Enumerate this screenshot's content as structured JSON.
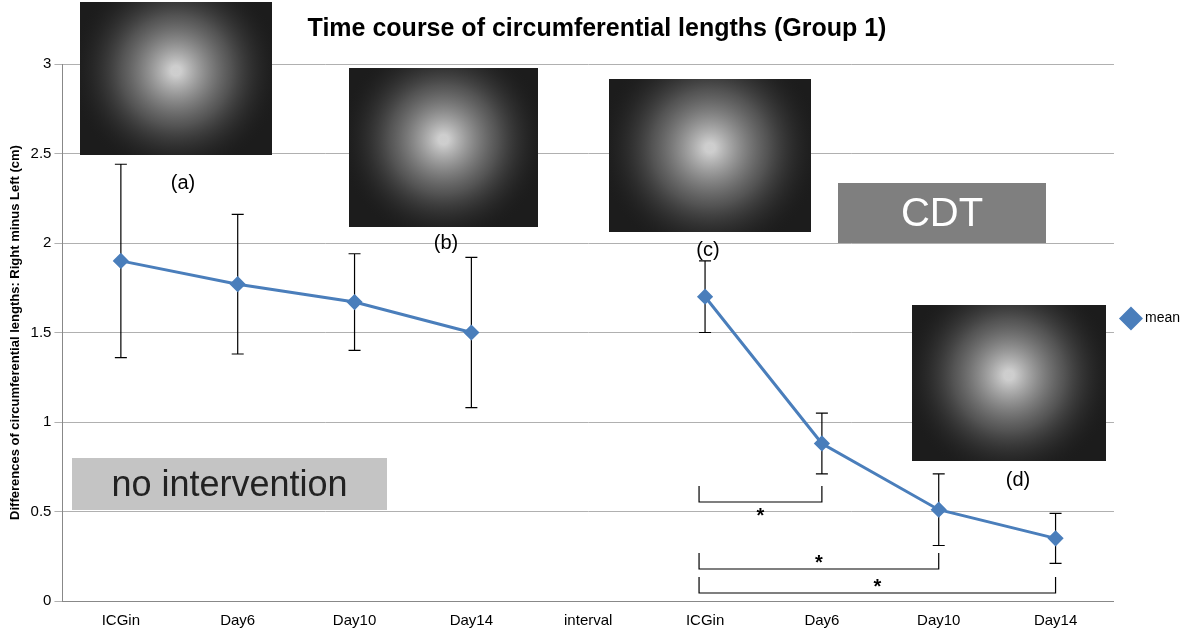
{
  "chart_data": {
    "type": "line",
    "title": "Time course of circumferential lengths (Group 1)",
    "y_label": "Differences of circumferential lengths: Right minus Left (cm)",
    "categories": [
      "ICGin",
      "Day6",
      "Day10",
      "Day14",
      "interval",
      "ICGin",
      "Day6",
      "Day10",
      "Day14"
    ],
    "series": [
      {
        "name": "mean",
        "color": "#4a7ebb",
        "marker": "diamond",
        "line_style": "solid",
        "values": [
          1.9,
          1.77,
          1.67,
          1.5,
          null,
          1.7,
          0.88,
          0.51,
          0.35
        ],
        "error": [
          0.54,
          0.39,
          0.27,
          0.42,
          null,
          0.2,
          0.17,
          0.2,
          0.14
        ]
      }
    ],
    "ylim": [
      0,
      3
    ],
    "yticks": [
      0,
      0.5,
      1,
      1.5,
      2,
      2.5,
      3
    ],
    "grid": true,
    "legend": "right",
    "annotations": [
      {
        "text": "no intervention"
      },
      {
        "text": "CDT"
      }
    ],
    "panels": [
      "(a)",
      "(b)",
      "(c)",
      "(d)"
    ],
    "significance": [
      {
        "from": 5,
        "to": 6,
        "label": "*"
      },
      {
        "from": 5,
        "to": 7,
        "label": "*"
      },
      {
        "from": 5,
        "to": 8,
        "label": "*"
      }
    ]
  }
}
